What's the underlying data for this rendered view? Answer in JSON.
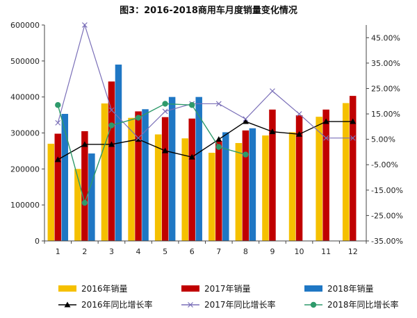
{
  "chart_data": {
    "type": "bar",
    "title": "图3：2016-2018商用车月度销量变化情况",
    "categories": [
      "1",
      "2",
      "3",
      "4",
      "5",
      "6",
      "7",
      "8",
      "9",
      "10",
      "11",
      "12"
    ],
    "ylim": [
      0,
      600000
    ],
    "y_ticks": [
      "0",
      "100000",
      "200000",
      "300000",
      "400000",
      "500000",
      "600000"
    ],
    "y2lim": [
      -35,
      50
    ],
    "y2_ticks": [
      "-35.00%",
      "-25.00%",
      "-15.00%",
      "-5.00%",
      "5.00%",
      "15.00%",
      "25.00%",
      "35.00%",
      "45.00%"
    ],
    "grid": false,
    "legend_position": "bottom",
    "bar_series": [
      {
        "name": "2016年销量",
        "color": "#f5c000",
        "values": [
          270000,
          200000,
          382000,
          342000,
          296000,
          285000,
          245000,
          272000,
          293000,
          302000,
          345000,
          383000
        ]
      },
      {
        "name": "2017年销量",
        "color": "#c00000",
        "values": [
          298000,
          305000,
          443000,
          360000,
          344000,
          340000,
          278000,
          307000,
          365000,
          349000,
          365000,
          403000
        ]
      },
      {
        "name": "2018年销量",
        "color": "#1f77c4",
        "values": [
          353000,
          243000,
          490000,
          366000,
          400000,
          400000,
          302000,
          313000,
          null,
          null,
          null,
          null
        ]
      }
    ],
    "line_series": [
      {
        "name": "2016年同比增长率",
        "color": "#000000",
        "marker": "triangle",
        "values": [
          -3.0,
          3.0,
          3.0,
          5.0,
          0.5,
          -2.0,
          5.0,
          12.0,
          8.0,
          7.0,
          12.0,
          12.0
        ]
      },
      {
        "name": "2017年同比增长率",
        "color": "#7a6fb8",
        "marker": "x",
        "values": [
          11.5,
          50.0,
          16.5,
          5.5,
          16.0,
          19.0,
          19.0,
          13.0,
          24.0,
          15.0,
          5.5,
          5.5
        ]
      },
      {
        "name": "2018年同比增长率",
        "color": "#2e9a6b",
        "marker": "circle",
        "values": [
          18.5,
          -20.0,
          10.5,
          13.5,
          19.0,
          18.5,
          2.0,
          -1.0,
          null,
          null,
          null,
          null
        ]
      }
    ]
  }
}
